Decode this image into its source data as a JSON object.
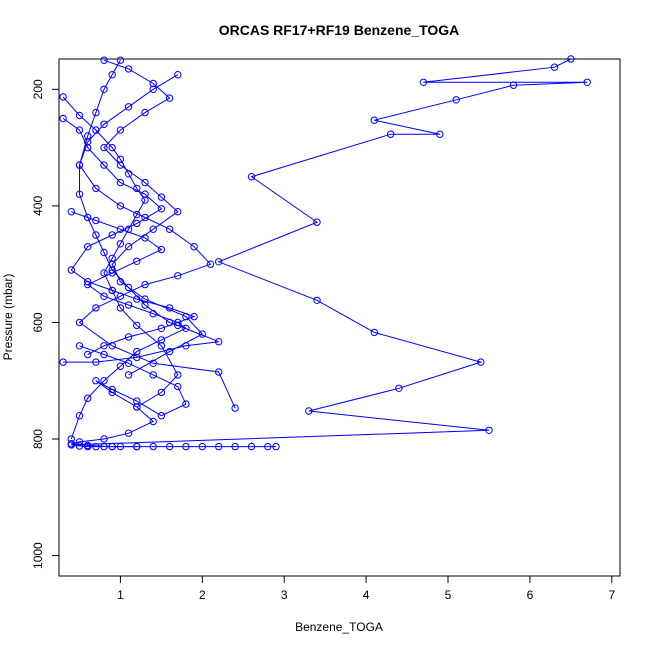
{
  "chart_data": {
    "type": "line",
    "title": "ORCAS RF17+RF19 Benzene_TOGA",
    "xlabel": "Benzene_TOGA",
    "ylabel": "Pressure (mbar)",
    "xlim": [
      0.25,
      7.1
    ],
    "ylim": [
      1035,
      148
    ],
    "y_reversed": true,
    "xticks": [
      1,
      2,
      3,
      4,
      5,
      6,
      7
    ],
    "yticks": [
      200,
      400,
      600,
      800,
      1000
    ],
    "color": "#0000ff",
    "marker": "open-circle",
    "series": [
      {
        "x": [
          6.5,
          6.3,
          4.7,
          6.7,
          5.8,
          5.1,
          4.1,
          4.9,
          4.3,
          2.6,
          3.4,
          2.2,
          3.4,
          4.1,
          5.4,
          4.4,
          3.3,
          5.5,
          0.4,
          0.5,
          0.6,
          0.7,
          0.8,
          0.9,
          1.0,
          1.2,
          1.4,
          1.6,
          1.8,
          2.0,
          2.2,
          2.4,
          2.6,
          2.8,
          2.9
        ],
        "y": [
          148,
          162,
          188,
          188,
          193,
          218,
          253,
          277,
          277,
          350,
          428,
          496,
          562,
          617,
          668,
          713,
          752,
          785,
          810,
          812,
          813,
          813,
          813,
          813,
          813,
          813,
          813,
          813,
          813,
          813,
          813,
          813,
          813,
          813,
          813
        ]
      },
      {
        "x": [
          1.0,
          0.9,
          0.8,
          0.7,
          0.6,
          0.5,
          0.5,
          0.6,
          0.7,
          0.8,
          0.9,
          1.1,
          1.3,
          1.6,
          1.7,
          2.2,
          1.8,
          1.2,
          0.7,
          0.3
        ],
        "y": [
          150,
          175,
          200,
          240,
          280,
          330,
          380,
          420,
          450,
          480,
          510,
          540,
          570,
          600,
          605,
          633,
          640,
          660,
          668,
          668
        ]
      },
      {
        "x": [
          0.3,
          0.5,
          0.7,
          0.9,
          1.0,
          1.1,
          1.2,
          1.3,
          1.2,
          1.1,
          1.0,
          0.9,
          0.8,
          0.9,
          1.0,
          1.2,
          1.5,
          1.7,
          1.5,
          1.2
        ],
        "y": [
          213,
          245,
          270,
          300,
          320,
          345,
          370,
          390,
          415,
          440,
          465,
          490,
          515,
          545,
          575,
          605,
          640,
          690,
          720,
          745
        ]
      },
      {
        "x": [
          0.8,
          1.1,
          1.4,
          1.6,
          1.3,
          1.0,
          0.8,
          1.0,
          1.3,
          1.5,
          1.7,
          1.4,
          1.1,
          0.9,
          1.0,
          1.3,
          1.8,
          2.0,
          1.6,
          1.1
        ],
        "y": [
          150,
          165,
          190,
          215,
          240,
          270,
          300,
          330,
          360,
          385,
          410,
          440,
          470,
          500,
          530,
          560,
          590,
          620,
          650,
          690
        ]
      },
      {
        "x": [
          0.3,
          0.5,
          0.6,
          0.8,
          1.0,
          1.3,
          1.5,
          1.2,
          0.9,
          0.6,
          0.4,
          0.6,
          0.9,
          1.2,
          1.6,
          1.9,
          1.5,
          1.1,
          0.8,
          0.6
        ],
        "y": [
          250,
          270,
          300,
          330,
          360,
          380,
          405,
          430,
          450,
          470,
          510,
          530,
          545,
          560,
          575,
          590,
          610,
          625,
          640,
          655
        ]
      },
      {
        "x": [
          1.7,
          1.4,
          1.1,
          0.8,
          0.6,
          0.5,
          0.7,
          1.0,
          1.3,
          1.6,
          1.9,
          2.1,
          1.7,
          1.3,
          1.0,
          0.7,
          0.5,
          0.9,
          1.4,
          2.2,
          2.4
        ],
        "y": [
          175,
          200,
          230,
          260,
          290,
          330,
          370,
          400,
          420,
          440,
          470,
          500,
          520,
          535,
          555,
          575,
          600,
          640,
          670,
          685,
          747
        ]
      },
      {
        "x": [
          0.4,
          0.7,
          1.0,
          1.3,
          1.5,
          1.2,
          0.9,
          0.6,
          0.8,
          1.1,
          1.4,
          1.7,
          1.8,
          1.5,
          1.2,
          1.0,
          0.8,
          0.6,
          0.5,
          0.4
        ],
        "y": [
          410,
          425,
          440,
          455,
          475,
          495,
          515,
          535,
          555,
          570,
          585,
          600,
          610,
          630,
          650,
          675,
          700,
          730,
          760,
          800
        ]
      },
      {
        "x": [
          0.5,
          0.8,
          1.1,
          1.4,
          1.7,
          1.8,
          1.5,
          1.2,
          0.9,
          0.7,
          0.9,
          1.2,
          1.4,
          1.1,
          0.8,
          0.5,
          0.4,
          0.6,
          0.9,
          1.2
        ],
        "y": [
          640,
          655,
          670,
          690,
          710,
          740,
          760,
          735,
          715,
          700,
          720,
          745,
          770,
          790,
          800,
          805,
          808,
          811,
          813,
          813
        ]
      }
    ]
  }
}
